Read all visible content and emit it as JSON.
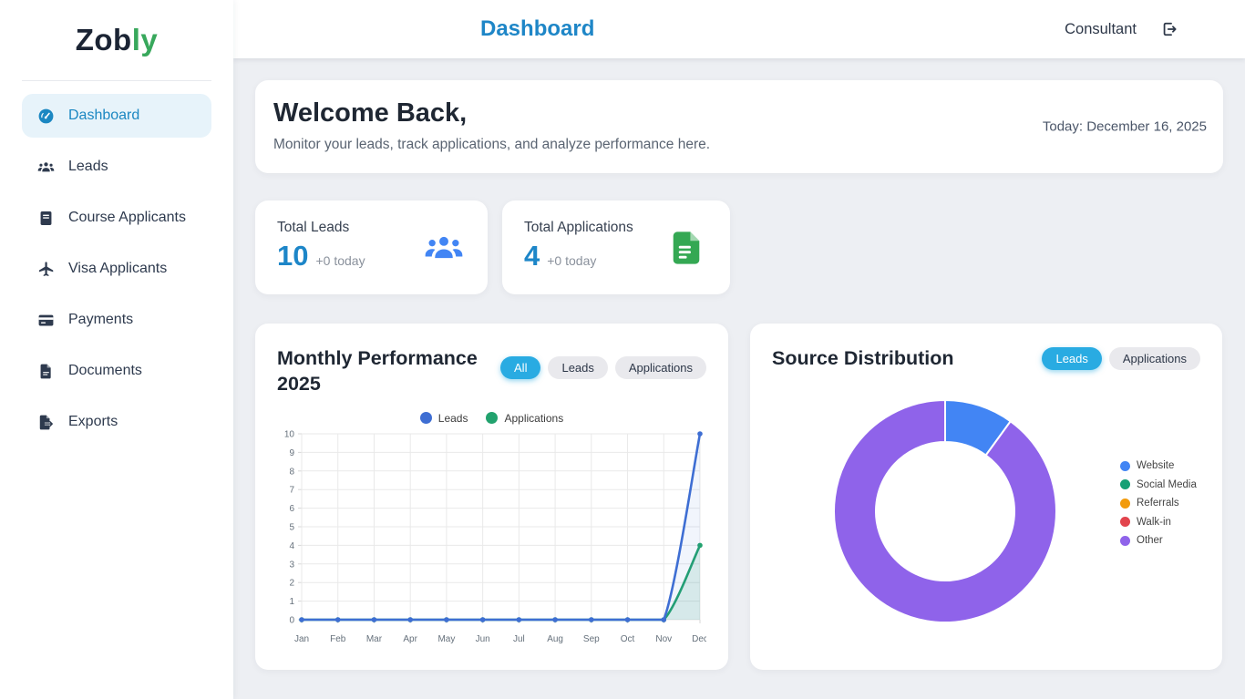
{
  "brand": {
    "name_primary": "Zob",
    "name_accent": "ly"
  },
  "sidebar": {
    "items": [
      {
        "label": "Dashboard",
        "icon": "dashboard-icon",
        "active": true
      },
      {
        "label": "Leads",
        "icon": "leads-icon",
        "active": false
      },
      {
        "label": "Course Applicants",
        "icon": "course-applicants-icon",
        "active": false
      },
      {
        "label": "Visa Applicants",
        "icon": "visa-applicants-icon",
        "active": false
      },
      {
        "label": "Payments",
        "icon": "payments-icon",
        "active": false
      },
      {
        "label": "Documents",
        "icon": "documents-icon",
        "active": false
      },
      {
        "label": "Exports",
        "icon": "exports-icon",
        "active": false
      }
    ]
  },
  "header": {
    "title": "Dashboard",
    "user_label": "Consultant"
  },
  "welcome": {
    "heading": "Welcome Back,",
    "subheading": "Monitor your leads, track applications, and analyze performance here.",
    "date_text": "Today: December 16, 2025"
  },
  "stats": [
    {
      "label": "Total Leads",
      "value": "10",
      "delta": "+0 today",
      "icon": "people-group-icon",
      "icon_color": "#4285f4"
    },
    {
      "label": "Total Applications",
      "value": "4",
      "delta": "+0 today",
      "icon": "document-icon",
      "icon_color": "#34a853"
    }
  ],
  "monthly_chart": {
    "title": "Monthly Performance 2025",
    "filters": [
      {
        "label": "All",
        "active": true
      },
      {
        "label": "Leads",
        "active": false
      },
      {
        "label": "Applications",
        "active": false
      }
    ]
  },
  "source_chart": {
    "title": "Source Distribution",
    "filters": [
      {
        "label": "Leads",
        "active": true
      },
      {
        "label": "Applications",
        "active": false
      }
    ]
  },
  "chart_data": [
    {
      "type": "line",
      "title": "Monthly Performance 2025",
      "categories": [
        "Jan",
        "Feb",
        "Mar",
        "Apr",
        "May",
        "Jun",
        "Jul",
        "Aug",
        "Sep",
        "Oct",
        "Nov",
        "Dec"
      ],
      "series": [
        {
          "name": "Leads",
          "color": "#3e6ed3",
          "fill_opacity": 0.07,
          "values": [
            0,
            0,
            0,
            0,
            0,
            0,
            0,
            0,
            0,
            0,
            0,
            10
          ]
        },
        {
          "name": "Applications",
          "color": "#22a26e",
          "fill_opacity": 0.13,
          "values": [
            0,
            0,
            0,
            0,
            0,
            0,
            0,
            0,
            0,
            0,
            0,
            4
          ]
        }
      ],
      "ylim": [
        0,
        10
      ],
      "y_step": 1,
      "grid": true,
      "legend_position": "top"
    },
    {
      "type": "doughnut",
      "title": "Source Distribution",
      "labels": [
        "Website",
        "Social Media",
        "Referrals",
        "Walk-in",
        "Other"
      ],
      "values": [
        1,
        0,
        0,
        0,
        9
      ],
      "colors": [
        "#4285f4",
        "#16a075",
        "#f29b0c",
        "#e2444d",
        "#8f63ea"
      ],
      "legend_position": "right"
    }
  ],
  "colors": {
    "accent_cyan": "#29abe2",
    "title_blue": "#1e86c7",
    "logo_green": "#38a85c",
    "sidebar_active_bg": "#e7f3fa",
    "sidebar_active_text": "#1b87c2",
    "page_bg": "#edeff3",
    "grid_line": "#e9e9e9",
    "axis_text": "#65707b"
  }
}
